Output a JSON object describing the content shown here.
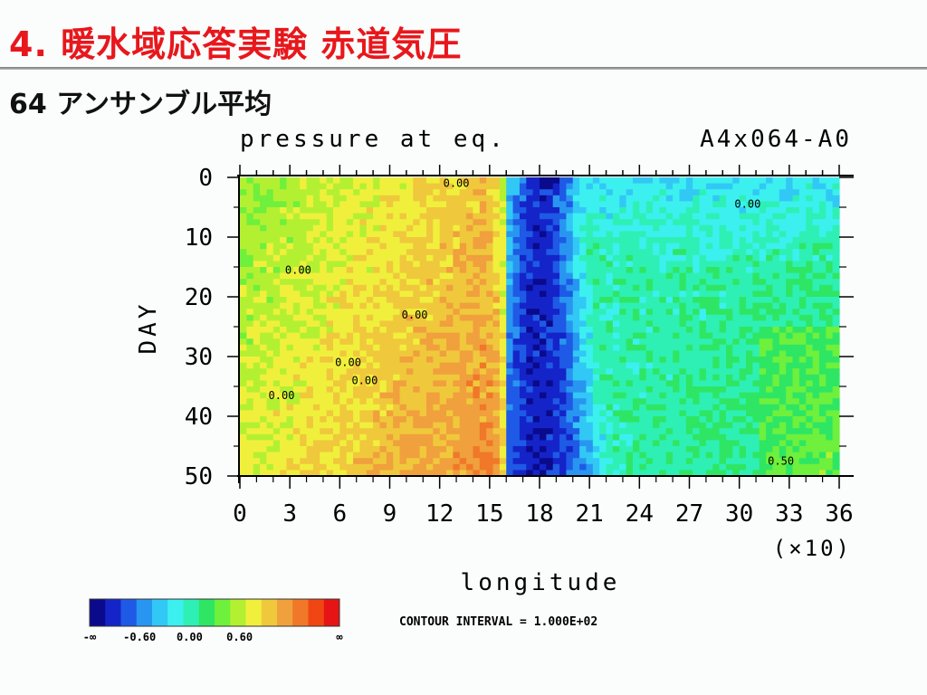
{
  "slide": {
    "title": "4. 暖水域応答実験 赤道気圧",
    "subtitle": "64 アンサンブル平均"
  },
  "chart_data": {
    "type": "heatmap",
    "title": "pressure at eq.",
    "run_label": "A4x064-A0",
    "xlabel": "longitude",
    "x_scale_note": "(×10)",
    "ylabel": "DAY",
    "x_ticks": [
      0,
      3,
      6,
      9,
      12,
      15,
      18,
      21,
      24,
      27,
      30,
      33,
      36
    ],
    "y_ticks": [
      0,
      10,
      20,
      30,
      40,
      50
    ],
    "xlim": [
      0,
      36
    ],
    "ylim": [
      0,
      50
    ],
    "y_inverted": true,
    "contour_labels": [
      {
        "text": "0.00",
        "x": 13.0,
        "y": 1
      },
      {
        "text": "0.00",
        "x": 30.5,
        "y": 4.5
      },
      {
        "text": "0.00",
        "x": 3.5,
        "y": 15.5
      },
      {
        "text": "0.00",
        "x": 10.5,
        "y": 23
      },
      {
        "text": "0.00",
        "x": 6.5,
        "y": 31
      },
      {
        "text": "0.00",
        "x": 7.5,
        "y": 34
      },
      {
        "text": "0.00",
        "x": 2.5,
        "y": 36.5
      },
      {
        "text": "0.50",
        "x": 32.5,
        "y": 47.5
      }
    ],
    "contour_interval": "CONTOUR INTERVAL = 1.000E+02",
    "colorbar": {
      "colors": [
        "#0a0a8c",
        "#1424c8",
        "#1e5ae6",
        "#2896f0",
        "#32c8f5",
        "#3cf0f0",
        "#2ef0b4",
        "#2ee664",
        "#6ef03c",
        "#b4f032",
        "#f0f03c",
        "#f0c83c",
        "#f0a03c",
        "#f07828",
        "#f04614",
        "#e61414"
      ],
      "labels": [
        "-∞",
        "-0.60",
        "0.00",
        "0.60",
        "∞"
      ],
      "label_positions": [
        0,
        0.2,
        0.4,
        0.6,
        1.0
      ]
    },
    "field_description_pattern": {
      "west_low": 0.1,
      "west_high": 0.85,
      "front_lon": 16,
      "trough_center": 18,
      "east_value": -0.45
    }
  }
}
